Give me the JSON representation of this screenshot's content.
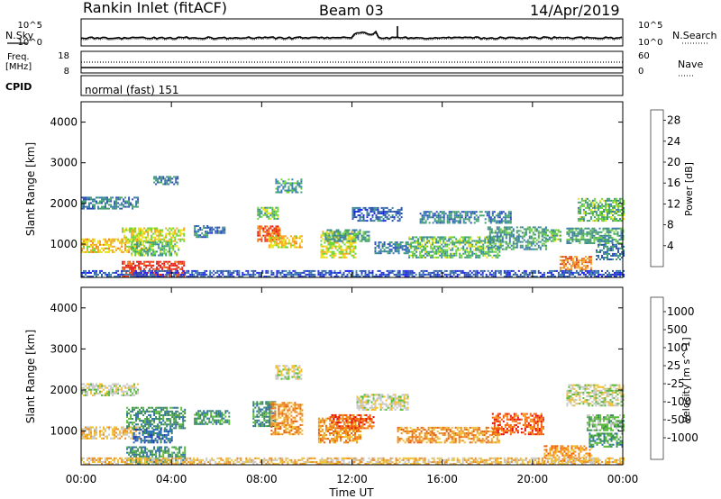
{
  "header": {
    "station": "Rankin Inlet (fitACF)",
    "beam": "Beam 03",
    "date": "14/Apr/2019"
  },
  "noise_panel": {
    "left_label": "N.Sky",
    "right_label": "N.Search",
    "left_ticks": [
      "10^5",
      "10^0"
    ],
    "right_ticks": [
      "10^5",
      "10^0"
    ]
  },
  "freq_panel": {
    "left_label_1": "Freq.",
    "left_label_2": "[MHz]",
    "left_ticks": [
      "18",
      "8"
    ],
    "right_label": "Nave",
    "right_ticks": [
      "60",
      "0"
    ]
  },
  "cpid_panel": {
    "label": "CPID",
    "mode": "normal (fast) 151"
  },
  "x_axis": {
    "title": "Time UT",
    "ticks": [
      "00:00",
      "04:00",
      "08:00",
      "12:00",
      "16:00",
      "20:00",
      "00:00"
    ]
  },
  "chart_data": [
    {
      "type": "heatmap",
      "title": "",
      "xlabel": "Time UT",
      "ylabel": "Slant Range [km]",
      "xlim": [
        0,
        24
      ],
      "ylim": [
        180,
        4500
      ],
      "y_ticks": [
        "1000",
        "2000",
        "3000",
        "4000"
      ],
      "colorbar": {
        "label": "Power [dB]",
        "ticks": [
          "4",
          "8",
          "12",
          "16",
          "20",
          "24",
          "28"
        ],
        "range": [
          0,
          30
        ],
        "colors": [
          "#1e24ff",
          "#2c4fb4",
          "#3a7dac",
          "#44a070",
          "#6ed23a",
          "#e8e21c",
          "#f5a822",
          "#f07a18",
          "#e8411c",
          "#e01414"
        ]
      },
      "regions": [
        {
          "t0": 0.0,
          "t1": 2.8,
          "r0": 780,
          "r1": 1100,
          "v": 18
        },
        {
          "t0": 0.0,
          "t1": 2.5,
          "r0": 1850,
          "r1": 2150,
          "v": 8
        },
        {
          "t0": 1.8,
          "t1": 4.6,
          "r0": 1050,
          "r1": 1400,
          "v": 16
        },
        {
          "t0": 1.8,
          "t1": 4.6,
          "r0": 180,
          "r1": 550,
          "v": 27
        },
        {
          "t0": 2.2,
          "t1": 4.3,
          "r0": 700,
          "r1": 1050,
          "v": 12
        },
        {
          "t0": 3.2,
          "t1": 4.3,
          "r0": 2450,
          "r1": 2650,
          "v": 8
        },
        {
          "t0": 5.0,
          "t1": 5.6,
          "r0": 1150,
          "r1": 1450,
          "v": 8
        },
        {
          "t0": 5.6,
          "t1": 6.4,
          "r0": 1250,
          "r1": 1400,
          "v": 6
        },
        {
          "t0": 7.8,
          "t1": 8.8,
          "r0": 1050,
          "r1": 1450,
          "v": 24
        },
        {
          "t0": 7.8,
          "t1": 8.7,
          "r0": 1600,
          "r1": 1900,
          "v": 12
        },
        {
          "t0": 8.3,
          "t1": 9.8,
          "r0": 900,
          "r1": 1200,
          "v": 18
        },
        {
          "t0": 8.6,
          "t1": 9.8,
          "r0": 2250,
          "r1": 2600,
          "v": 10
        },
        {
          "t0": 10.6,
          "t1": 12.2,
          "r0": 650,
          "r1": 1300,
          "v": 16
        },
        {
          "t0": 10.8,
          "t1": 12.8,
          "r0": 1050,
          "r1": 1350,
          "v": 10
        },
        {
          "t0": 12.0,
          "t1": 14.2,
          "r0": 1550,
          "r1": 1900,
          "v": 6
        },
        {
          "t0": 13.0,
          "t1": 14.5,
          "r0": 750,
          "r1": 1050,
          "v": 8
        },
        {
          "t0": 14.5,
          "t1": 18.5,
          "r0": 650,
          "r1": 1150,
          "v": 12
        },
        {
          "t0": 15.0,
          "t1": 19.0,
          "r0": 1500,
          "r1": 1800,
          "v": 8
        },
        {
          "t0": 18.0,
          "t1": 20.6,
          "r0": 850,
          "r1": 1400,
          "v": 10
        },
        {
          "t0": 20.4,
          "t1": 21.2,
          "r0": 1050,
          "r1": 1350,
          "v": 12
        },
        {
          "t0": 21.2,
          "t1": 22.6,
          "r0": 350,
          "r1": 680,
          "v": 22
        },
        {
          "t0": 21.5,
          "t1": 24.0,
          "r0": 1000,
          "r1": 1400,
          "v": 10
        },
        {
          "t0": 22.0,
          "t1": 24.0,
          "r0": 1550,
          "r1": 2100,
          "v": 12
        },
        {
          "t0": 22.8,
          "t1": 24.0,
          "r0": 600,
          "r1": 1000,
          "v": 8
        },
        {
          "t0": 0.0,
          "t1": 24.0,
          "r0": 180,
          "r1": 330,
          "v": 5
        }
      ]
    },
    {
      "type": "heatmap",
      "title": "",
      "xlabel": "Time UT",
      "ylabel": "Slant Range [km]",
      "xlim": [
        0,
        24
      ],
      "ylim": [
        180,
        4500
      ],
      "y_ticks": [
        "1000",
        "2000",
        "3000",
        "4000"
      ],
      "colorbar": {
        "label": "Velocity [m s^-1]",
        "ticks": [
          "1000",
          "500",
          "100",
          "25",
          "-25",
          "-100",
          "-500",
          "-1000"
        ],
        "colors": [
          "#1e3ca8",
          "#2c6fb0",
          "#3a8a5c",
          "#5cbb3c",
          "#c8c8c8",
          "#f0c030",
          "#f09020",
          "#f06010",
          "#e01010"
        ]
      },
      "regions": [
        {
          "t0": 0.0,
          "t1": 2.6,
          "r0": 800,
          "r1": 1100,
          "v": 5
        },
        {
          "t0": 0.0,
          "t1": 2.5,
          "r0": 1850,
          "r1": 2150,
          "v": 4
        },
        {
          "t0": 2.0,
          "t1": 4.6,
          "r0": 1050,
          "r1": 1550,
          "v": 2
        },
        {
          "t0": 2.0,
          "t1": 4.6,
          "r0": 180,
          "r1": 600,
          "v": 2
        },
        {
          "t0": 2.3,
          "t1": 4.0,
          "r0": 700,
          "r1": 1050,
          "v": 1
        },
        {
          "t0": 5.0,
          "t1": 6.6,
          "r0": 1150,
          "r1": 1500,
          "v": 2
        },
        {
          "t0": 7.6,
          "t1": 8.6,
          "r0": 1100,
          "r1": 1700,
          "v": 2
        },
        {
          "t0": 8.4,
          "t1": 9.8,
          "r0": 900,
          "r1": 1700,
          "v": 6
        },
        {
          "t0": 8.6,
          "t1": 9.8,
          "r0": 2250,
          "r1": 2600,
          "v": 4
        },
        {
          "t0": 10.5,
          "t1": 12.4,
          "r0": 700,
          "r1": 1300,
          "v": 6
        },
        {
          "t0": 11.0,
          "t1": 13.0,
          "r0": 1050,
          "r1": 1400,
          "v": 7
        },
        {
          "t0": 12.2,
          "t1": 14.5,
          "r0": 1500,
          "r1": 1900,
          "v": 4
        },
        {
          "t0": 14.0,
          "t1": 18.5,
          "r0": 700,
          "r1": 1100,
          "v": 6
        },
        {
          "t0": 18.2,
          "t1": 20.5,
          "r0": 900,
          "r1": 1400,
          "v": 7
        },
        {
          "t0": 20.5,
          "t1": 22.6,
          "r0": 250,
          "r1": 650,
          "v": 6
        },
        {
          "t0": 21.5,
          "t1": 24.0,
          "r0": 1600,
          "r1": 2100,
          "v": 4
        },
        {
          "t0": 22.4,
          "t1": 24.0,
          "r0": 1000,
          "r1": 1400,
          "v": 3
        },
        {
          "t0": 22.5,
          "t1": 24.0,
          "r0": 600,
          "r1": 950,
          "v": 2
        },
        {
          "t0": 0.0,
          "t1": 24.0,
          "r0": 180,
          "r1": 330,
          "v": 5
        }
      ]
    }
  ]
}
